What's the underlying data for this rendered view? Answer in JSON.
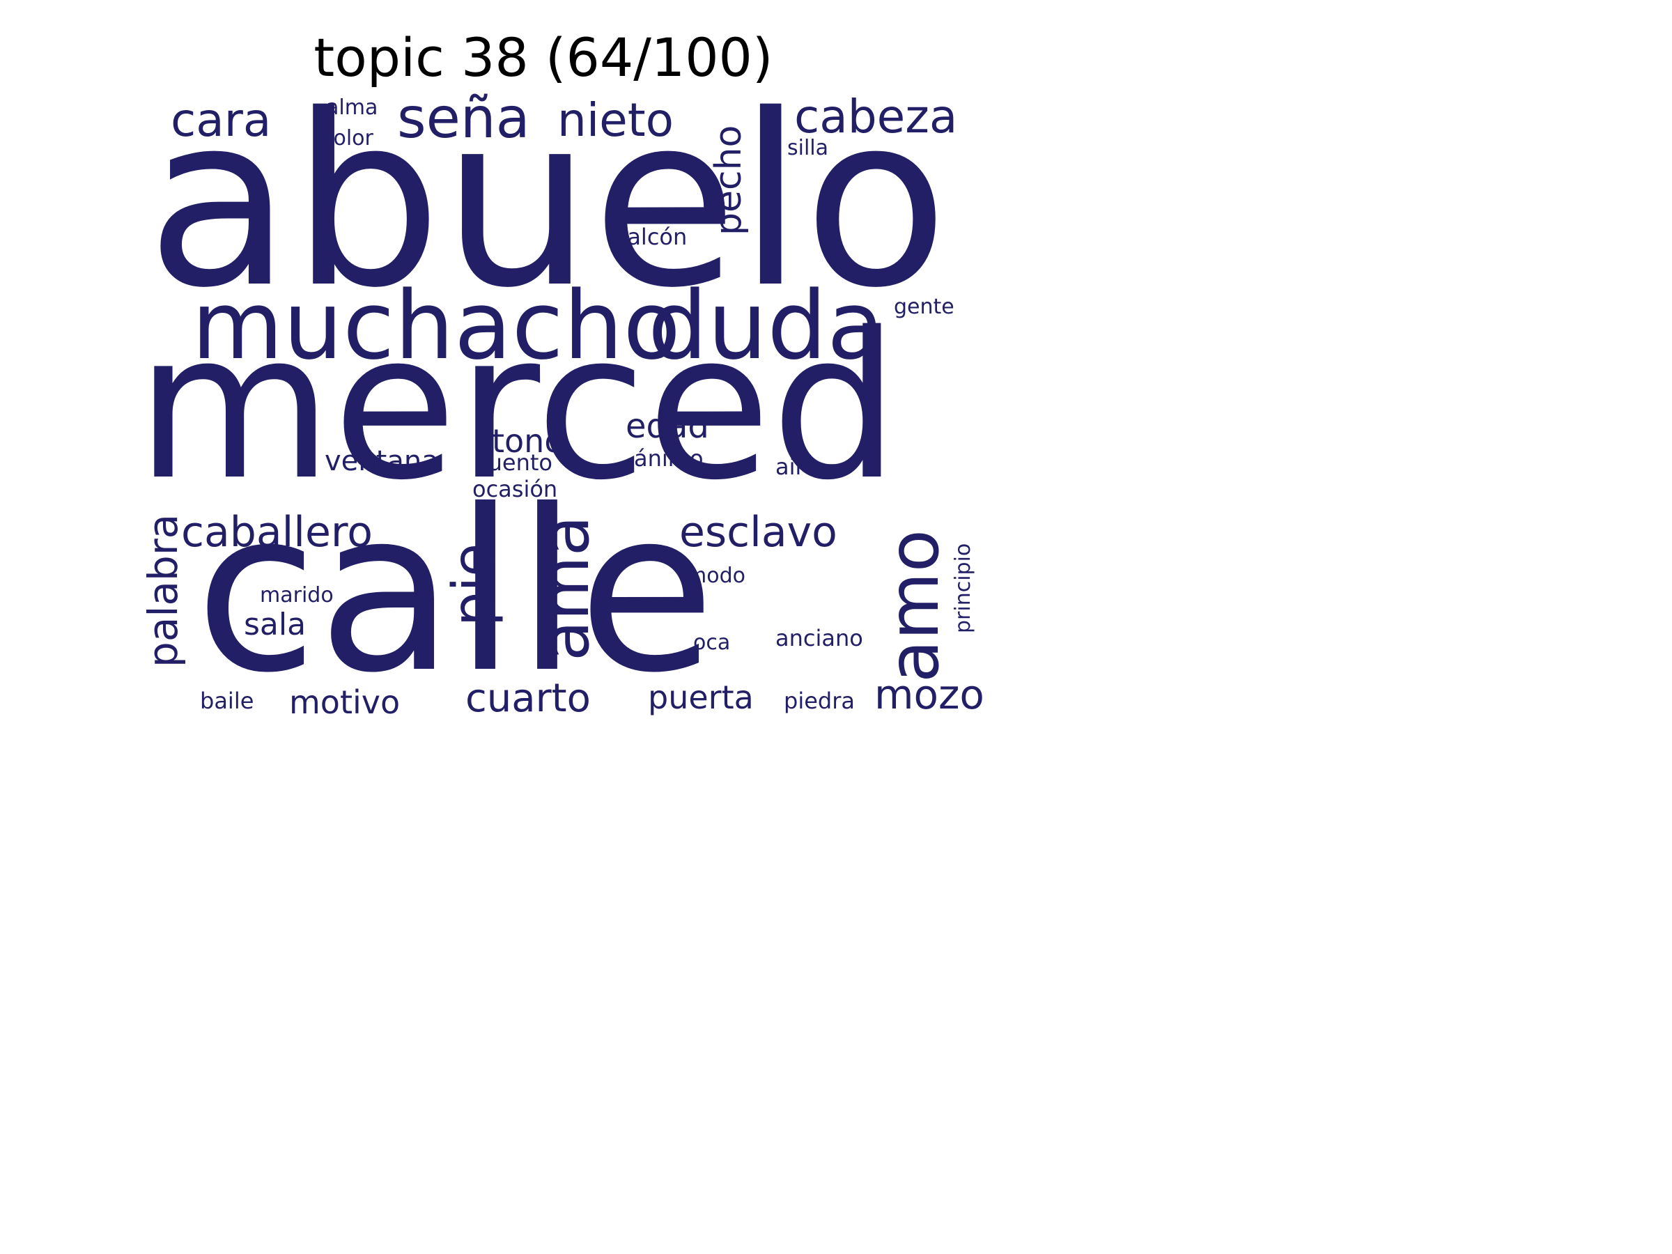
{
  "title": "topic 38 (64/100)",
  "word_color": "#221f66",
  "words": [
    {
      "text": "abuelo"
    },
    {
      "text": "merced"
    },
    {
      "text": "calle"
    },
    {
      "text": "muchacho"
    },
    {
      "text": "duda"
    },
    {
      "text": "seña"
    },
    {
      "text": "nieto"
    },
    {
      "text": "cara"
    },
    {
      "text": "cabeza"
    },
    {
      "text": "pecho"
    },
    {
      "text": "alma"
    },
    {
      "text": "color"
    },
    {
      "text": "silla"
    },
    {
      "text": "balcón"
    },
    {
      "text": "gente"
    },
    {
      "text": "edad"
    },
    {
      "text": "tono"
    },
    {
      "text": "ventana"
    },
    {
      "text": "cuento"
    },
    {
      "text": "ánimo"
    },
    {
      "text": "aire"
    },
    {
      "text": "ocasión"
    },
    {
      "text": "caballero"
    },
    {
      "text": "esclavo"
    },
    {
      "text": "palabra"
    },
    {
      "text": "pie"
    },
    {
      "text": "ama"
    },
    {
      "text": "amo"
    },
    {
      "text": "principio"
    },
    {
      "text": "modo"
    },
    {
      "text": "marido"
    },
    {
      "text": "sala"
    },
    {
      "text": "oca"
    },
    {
      "text": "anciano"
    },
    {
      "text": "baile"
    },
    {
      "text": "motivo"
    },
    {
      "text": "cuarto"
    },
    {
      "text": "puerta"
    },
    {
      "text": "piedra"
    },
    {
      "text": "mozo"
    }
  ]
}
